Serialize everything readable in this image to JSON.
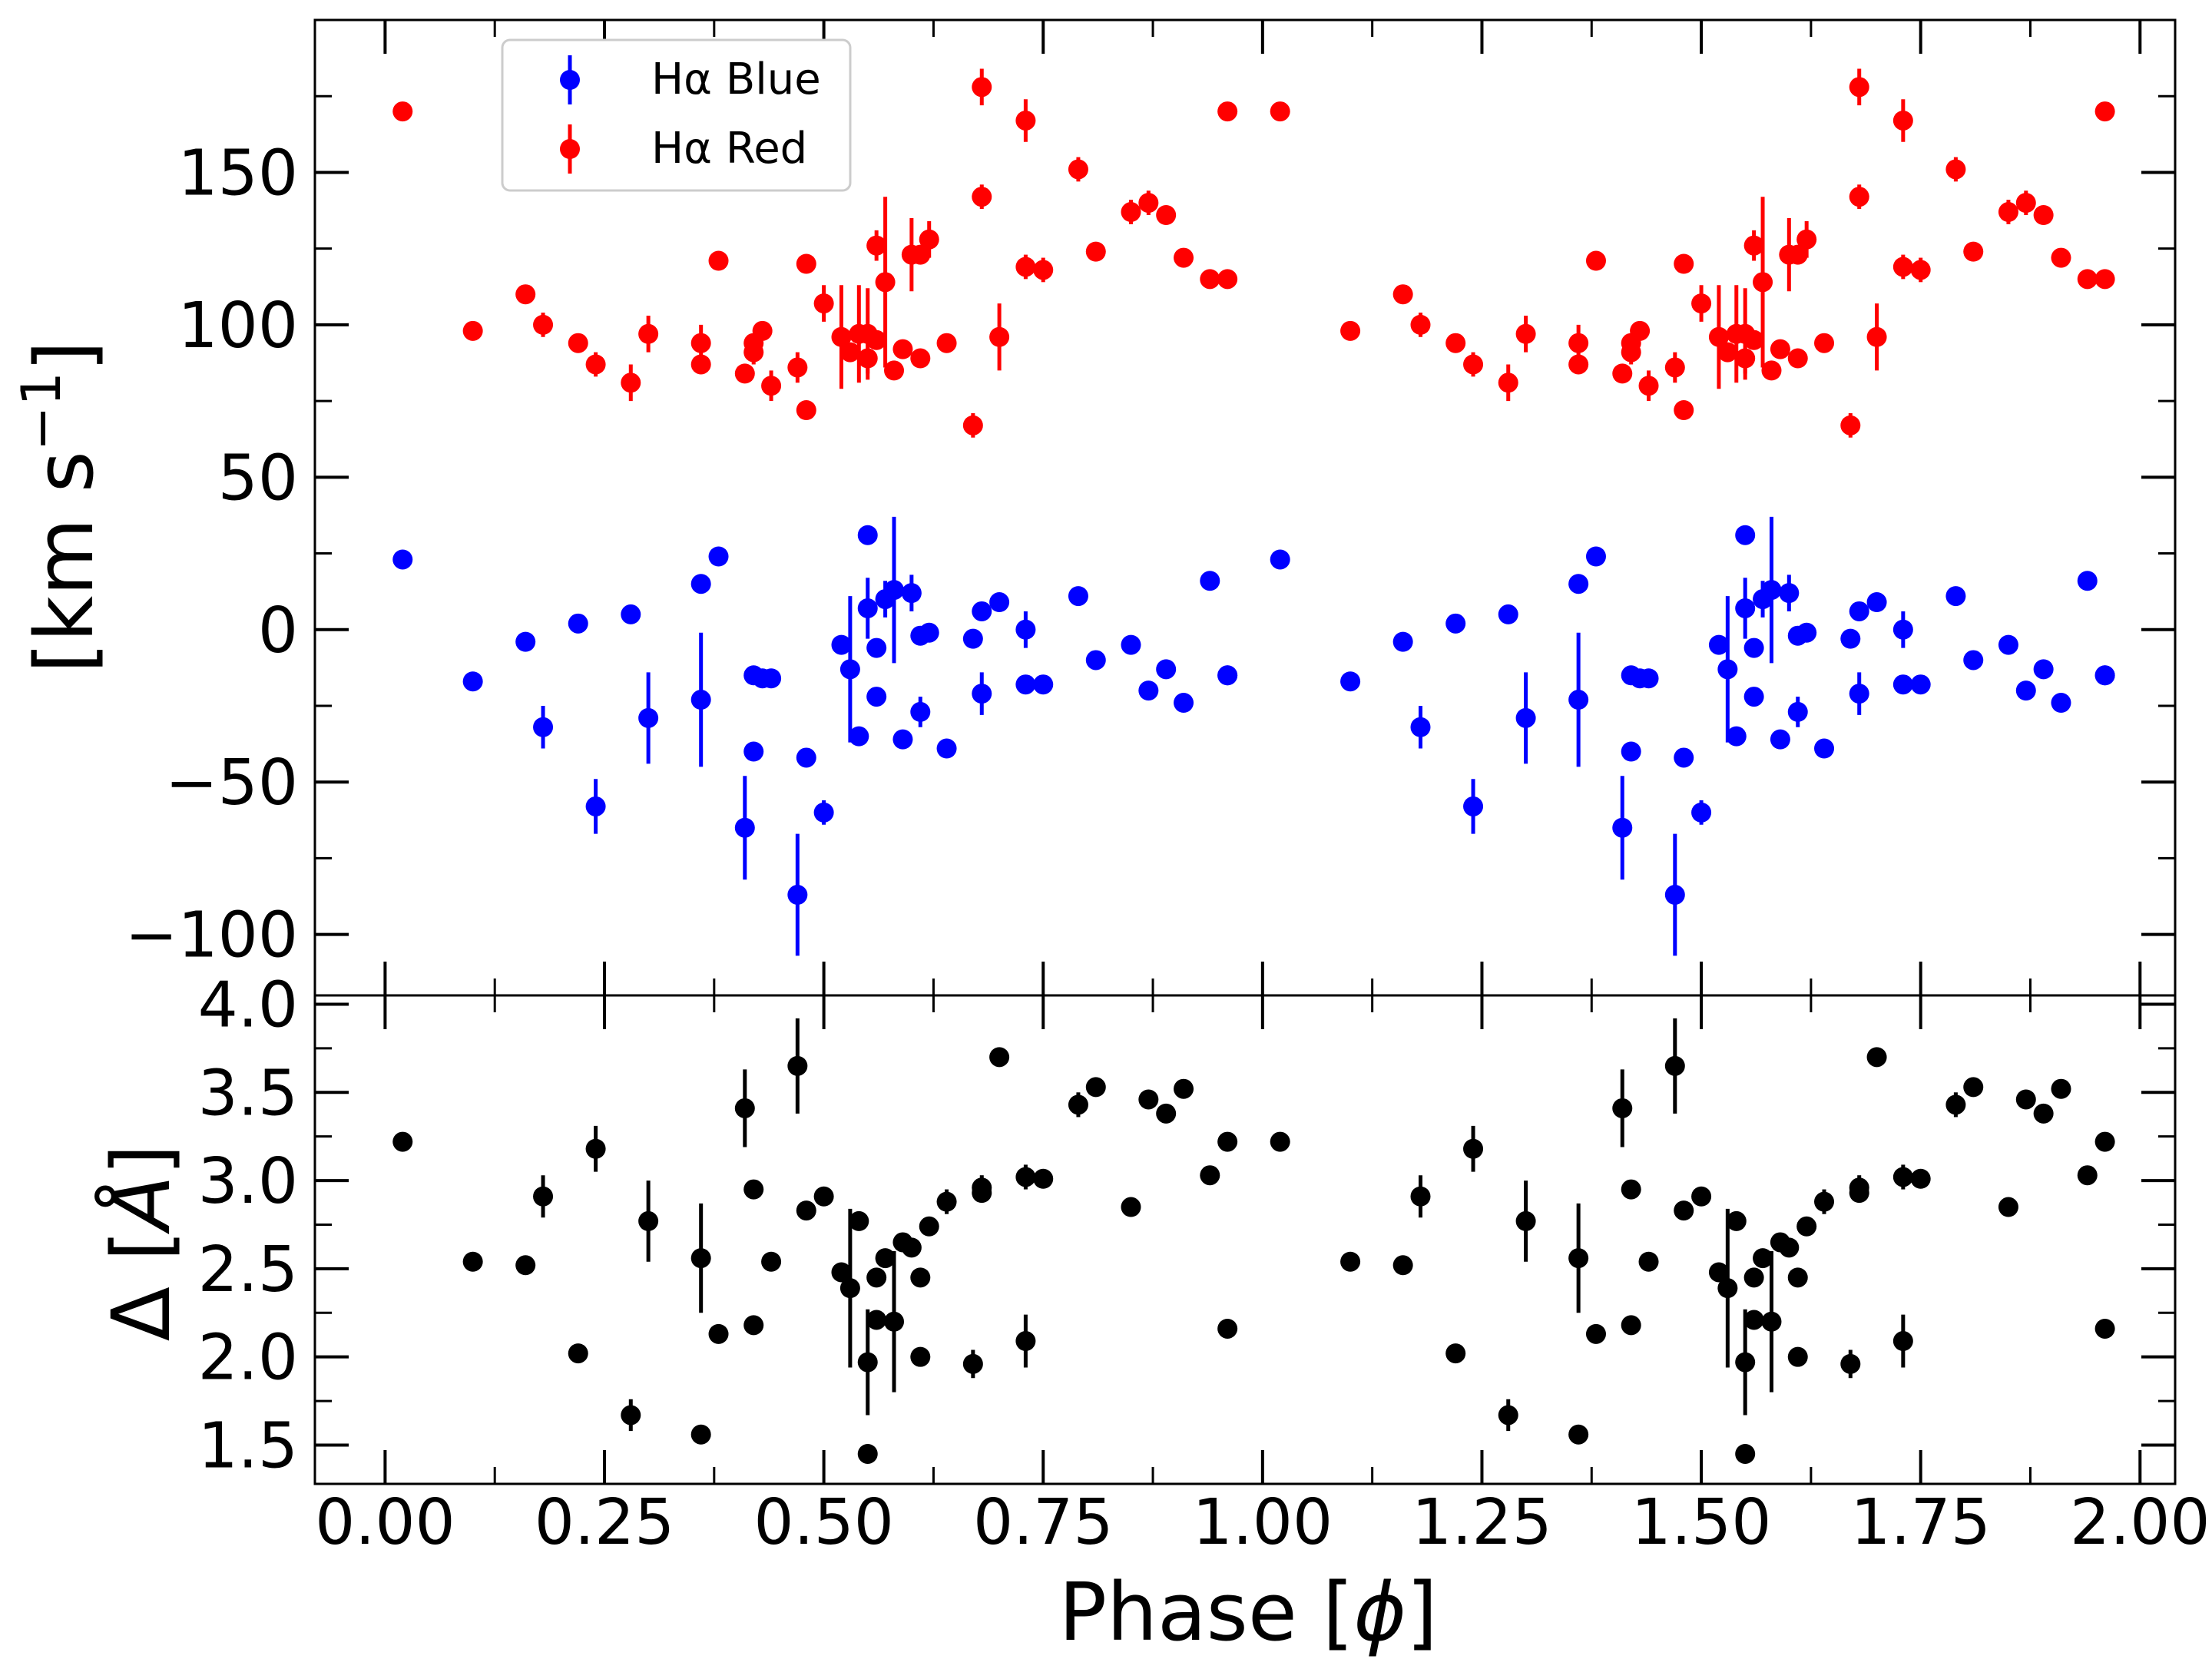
{
  "chart_data": [
    {
      "type": "scatter",
      "panel": "top",
      "ylabel": "[km s$^{-1}$]",
      "ylabel_parts": {
        "main": "[km s",
        "sup": "−1",
        "close": "]"
      },
      "xlim": [
        -0.08,
        2.04
      ],
      "ylim": [
        -120,
        200
      ],
      "yticks": [
        -100,
        -50,
        0,
        50,
        100,
        150
      ],
      "ytick_labels": [
        "−100",
        "−50",
        "0",
        "50",
        "100",
        "150"
      ],
      "legend": {
        "location": "top-left",
        "entries": [
          {
            "label": "Hα Blue",
            "color": "#0000ff"
          },
          {
            "label": "Hα Red",
            "color": "#ff0000"
          }
        ]
      },
      "series": [
        {
          "name": "Hα Blue",
          "color": "#0000ff",
          "x": [
            0.02,
            0.1,
            0.16,
            0.18,
            0.22,
            0.24,
            0.28,
            0.3,
            0.36,
            0.36,
            0.38,
            0.41,
            0.42,
            0.42,
            0.43,
            0.44,
            0.47,
            0.48,
            0.5,
            0.52,
            0.53,
            0.54,
            0.55,
            0.55,
            0.56,
            0.56,
            0.57,
            0.58,
            0.59,
            0.6,
            0.61,
            0.61,
            0.62,
            0.64,
            0.67,
            0.68,
            0.68,
            0.7,
            0.73,
            0.73,
            0.75,
            0.79,
            0.81,
            0.85,
            0.87,
            0.89,
            0.91,
            0.94,
            0.96,
            0.96
          ],
          "y": [
            23,
            -17,
            -4,
            -32,
            2,
            -58,
            5,
            -29,
            15,
            -23,
            24,
            -65,
            -15,
            -40,
            -16,
            -16,
            -87,
            -42,
            -60,
            -5,
            -13,
            -35,
            31,
            7,
            -22,
            -6,
            10,
            13,
            -36,
            12,
            -27,
            -2,
            -1,
            -39,
            -3,
            -21,
            6,
            9,
            -18,
            0,
            -18,
            11,
            -10,
            -5,
            -20,
            -13,
            -24,
            16,
            -15,
            -15
          ],
          "yerr": [
            0,
            0,
            0,
            7,
            0,
            9,
            0,
            15,
            0,
            22,
            0,
            17,
            0,
            0,
            0,
            0,
            20,
            0,
            4,
            0,
            24,
            0,
            0,
            10,
            0,
            0,
            6,
            24,
            0,
            6,
            5,
            0,
            0,
            0,
            0,
            7,
            0,
            0,
            0,
            6,
            0,
            0,
            0,
            0,
            0,
            0,
            0,
            0,
            0,
            0
          ]
        },
        {
          "name": "Hα Red",
          "color": "#ff0000",
          "x": [
            0.02,
            0.1,
            0.16,
            0.18,
            0.22,
            0.24,
            0.28,
            0.3,
            0.36,
            0.36,
            0.38,
            0.41,
            0.42,
            0.42,
            0.43,
            0.44,
            0.47,
            0.48,
            0.48,
            0.5,
            0.52,
            0.53,
            0.54,
            0.55,
            0.55,
            0.56,
            0.56,
            0.57,
            0.58,
            0.59,
            0.6,
            0.61,
            0.61,
            0.62,
            0.64,
            0.67,
            0.68,
            0.68,
            0.7,
            0.73,
            0.73,
            0.75,
            0.79,
            0.81,
            0.85,
            0.87,
            0.89,
            0.91,
            0.94,
            0.96,
            0.96
          ],
          "y": [
            170,
            98,
            110,
            100,
            94,
            87,
            81,
            97,
            87,
            94,
            121,
            84,
            91,
            94,
            98,
            80,
            86,
            72,
            120,
            107,
            96,
            91,
            97,
            89,
            97,
            95,
            126,
            114,
            85,
            92,
            123,
            89,
            123,
            128,
            94,
            67,
            142,
            178,
            96,
            119,
            167,
            118,
            151,
            124,
            137,
            140,
            136,
            122,
            115,
            115,
            170
          ],
          "yerr": [
            0,
            0,
            0,
            4,
            0,
            4,
            6,
            6,
            0,
            6,
            0,
            0,
            4,
            0,
            0,
            5,
            5,
            0,
            0,
            6,
            17,
            0,
            16,
            5,
            15,
            0,
            5,
            28,
            0,
            0,
            12,
            0,
            0,
            6,
            0,
            4,
            4,
            6,
            11,
            4,
            7,
            4,
            4,
            0,
            4,
            4,
            0,
            0,
            0,
            0,
            0
          ]
        }
      ]
    },
    {
      "type": "scatter",
      "panel": "bottom",
      "xlabel": "Phase [ϕ]",
      "xlabel_parts": {
        "main": "Phase [",
        "sym": "ϕ",
        "close": "]"
      },
      "ylabel": "Δ [Å]",
      "ylabel_parts": {
        "main": "Δ [",
        "sym": "Å",
        "close": "]"
      },
      "xlim": [
        -0.08,
        2.04
      ],
      "ylim": [
        1.28,
        4.05
      ],
      "xticks": [
        0.0,
        0.25,
        0.5,
        0.75,
        1.0,
        1.25,
        1.5,
        1.75,
        2.0
      ],
      "xtick_labels": [
        "0.00",
        "0.25",
        "0.50",
        "0.75",
        "1.00",
        "1.25",
        "1.50",
        "1.75",
        "2.00"
      ],
      "yticks": [
        1.5,
        2.0,
        2.5,
        3.0,
        3.5,
        4.0
      ],
      "ytick_labels": [
        "1.5",
        "2.0",
        "2.5",
        "3.0",
        "3.5",
        "4.0"
      ],
      "series": [
        {
          "name": "Δ",
          "color": "#000000",
          "x": [
            0.02,
            0.1,
            0.16,
            0.18,
            0.22,
            0.24,
            0.28,
            0.3,
            0.36,
            0.36,
            0.38,
            0.41,
            0.42,
            0.42,
            0.44,
            0.47,
            0.48,
            0.5,
            0.52,
            0.53,
            0.54,
            0.55,
            0.55,
            0.56,
            0.56,
            0.57,
            0.58,
            0.59,
            0.6,
            0.61,
            0.61,
            0.62,
            0.64,
            0.67,
            0.68,
            0.68,
            0.7,
            0.73,
            0.73,
            0.75,
            0.79,
            0.81,
            0.85,
            0.87,
            0.89,
            0.91,
            0.94,
            0.96,
            0.96
          ],
          "y": [
            3.22,
            2.54,
            2.52,
            2.91,
            2.02,
            3.18,
            1.67,
            2.77,
            2.56,
            1.56,
            2.13,
            3.41,
            2.18,
            2.95,
            2.54,
            3.65,
            2.83,
            2.91,
            2.48,
            2.39,
            2.77,
            1.45,
            1.97,
            2.45,
            2.21,
            2.56,
            2.2,
            2.65,
            2.62,
            2.45,
            2.0,
            2.74,
            2.88,
            1.96,
            2.93,
            2.96,
            3.7,
            3.02,
            2.09,
            3.01,
            3.43,
            3.53,
            2.85,
            3.46,
            3.38,
            3.52,
            3.03,
            2.16,
            3.22
          ],
          "yerr": [
            0,
            0,
            0,
            0.12,
            0,
            0.13,
            0.09,
            0.23,
            0.31,
            0,
            0,
            0.22,
            0,
            0,
            0,
            0.27,
            0,
            0,
            0,
            0.45,
            0,
            0,
            0.3,
            0,
            0,
            0,
            0.4,
            0,
            0,
            0,
            0,
            0,
            0.07,
            0.08,
            0,
            0.07,
            0.05,
            0.07,
            0.15,
            0,
            0.07,
            0,
            0,
            0,
            0,
            0,
            0,
            0,
            0
          ]
        }
      ]
    }
  ]
}
